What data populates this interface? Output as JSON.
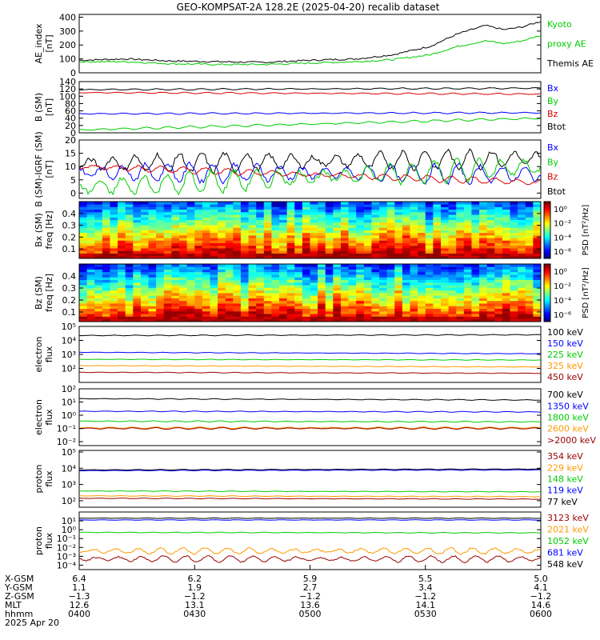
{
  "title": "GEO-KOMPSAT-2A 128.2E (2025-04-20) recalib dataset",
  "colors": {
    "black": "#000000",
    "blue": "#0000ff",
    "green": "#00cc00",
    "red": "#dd0000",
    "orange": "#ff9900",
    "darkred": "#990000"
  },
  "chart_data": [
    {
      "id": "ae",
      "type": "line",
      "ylabel": [
        "AE_index",
        "[nT]"
      ],
      "ylim": [
        0,
        420
      ],
      "log": false,
      "ticks": [
        "0",
        "100",
        "200",
        "300",
        "400"
      ],
      "tick_values": [
        0,
        100,
        200,
        300,
        400
      ],
      "legend": [
        {
          "label": "Kyoto",
          "color": "#00cc00"
        },
        {
          "label": "proxy AE",
          "color": "#00cc00"
        },
        {
          "label": "Themis AE",
          "color": "#000000"
        }
      ],
      "x": [
        0,
        0.1,
        0.2,
        0.3,
        0.4,
        0.5,
        0.6,
        0.68,
        0.76,
        0.82,
        0.88,
        0.92,
        0.96,
        1.0
      ],
      "series": [
        {
          "name": "Themis AE",
          "color": "#000000",
          "values": [
            90,
            100,
            85,
            80,
            75,
            90,
            100,
            130,
            190,
            280,
            340,
            310,
            330,
            370
          ]
        },
        {
          "name": "Kyoto proxy AE",
          "color": "#00cc00",
          "values": [
            80,
            80,
            65,
            60,
            60,
            70,
            80,
            95,
            130,
            190,
            230,
            210,
            230,
            270
          ]
        }
      ]
    },
    {
      "id": "bgsm",
      "type": "line",
      "ylabel": [
        "B (SM)",
        "[nT]"
      ],
      "ylim": [
        0,
        140
      ],
      "log": false,
      "ticks": [
        "0",
        "20",
        "40",
        "60",
        "80",
        "100",
        "120",
        "140"
      ],
      "tick_values": [
        0,
        20,
        40,
        60,
        80,
        100,
        120,
        140
      ],
      "legend": [
        {
          "label": "Bx",
          "color": "#0000ff"
        },
        {
          "label": "By",
          "color": "#00cc00"
        },
        {
          "label": "Bz",
          "color": "#dd0000"
        },
        {
          "label": "Btot",
          "color": "#000000"
        }
      ],
      "series": [
        {
          "name": "Btot",
          "color": "#000000",
          "start": 118,
          "end": 122,
          "osc": 2
        },
        {
          "name": "Bz",
          "color": "#dd0000",
          "start": 110,
          "end": 106,
          "osc": 2
        },
        {
          "name": "Bx",
          "color": "#0000ff",
          "start": 52,
          "end": 55,
          "osc": 2
        },
        {
          "name": "By",
          "color": "#00cc00",
          "start": 8,
          "end": 40,
          "osc": 3
        }
      ]
    },
    {
      "id": "bgrf",
      "type": "line",
      "ylabel": [
        "B (SM)-IGRF (SM)",
        "[nT]"
      ],
      "ylim": [
        -2,
        20
      ],
      "log": false,
      "ticks": [
        "0",
        "5",
        "10",
        "15",
        "20"
      ],
      "tick_values": [
        0,
        5,
        10,
        15,
        20
      ],
      "legend": [
        {
          "label": "Bx",
          "color": "#0000ff"
        },
        {
          "label": "By",
          "color": "#00cc00"
        },
        {
          "label": "Bz",
          "color": "#dd0000"
        },
        {
          "label": "Btot",
          "color": "#000000"
        }
      ],
      "series": [
        {
          "name": "Btot",
          "color": "#000000",
          "start": 11,
          "end": 13,
          "osc": 3.5
        },
        {
          "name": "Bx",
          "color": "#0000ff",
          "start": 8,
          "end": 7,
          "osc": 3.5
        },
        {
          "name": "Bz",
          "color": "#dd0000",
          "start": 10,
          "end": 4,
          "osc": 1.2
        },
        {
          "name": "By",
          "color": "#00cc00",
          "start": 2,
          "end": 10,
          "osc": 4
        }
      ]
    },
    {
      "id": "bxspec",
      "type": "heatmap",
      "ylabel": [
        "Bx (SM)",
        "freq [Hz]"
      ],
      "ylim": [
        0.02,
        0.5
      ],
      "ticks": [
        "0.1",
        "0.2",
        "0.3",
        "0.4"
      ],
      "tick_values": [
        0.1,
        0.2,
        0.3,
        0.4
      ],
      "colorbar_label": "PSD [nT²/Hz]",
      "colorbar_ticks": [
        "10⁰",
        "10⁻²",
        "10⁻⁴",
        "10⁻⁶"
      ],
      "colorbar_range": [
        -7,
        1
      ]
    },
    {
      "id": "bzspec",
      "type": "heatmap",
      "ylabel": [
        "Bz (SM)",
        "freq [Hz]"
      ],
      "ylim": [
        0.02,
        0.5
      ],
      "ticks": [
        "0.1",
        "0.2",
        "0.3",
        "0.4"
      ],
      "tick_values": [
        0.1,
        0.2,
        0.3,
        0.4
      ],
      "colorbar_label": "PSD [nT²/Hz]",
      "colorbar_ticks": [
        "10⁰",
        "10⁻²",
        "10⁻⁴",
        "10⁻⁶"
      ],
      "colorbar_range": [
        -7,
        1
      ]
    },
    {
      "id": "elec1",
      "type": "line",
      "log": true,
      "ylabel": [
        "electron",
        "flux"
      ],
      "ylim": [
        1,
        5
      ],
      "ticks": [
        "10²",
        "10³",
        "10⁴",
        "10⁵"
      ],
      "tick_values": [
        2,
        3,
        4,
        5
      ],
      "legend": [
        {
          "label": "100 keV",
          "color": "#000000"
        },
        {
          "label": "150 keV",
          "color": "#0000ff"
        },
        {
          "label": "225 keV",
          "color": "#00cc00"
        },
        {
          "label": "325 keV",
          "color": "#ff9900"
        },
        {
          "label": "450 keV",
          "color": "#990000"
        }
      ],
      "series": [
        {
          "name": "100 keV",
          "color": "#000000",
          "start": 4.35,
          "end": 4.4,
          "osc": 0.03
        },
        {
          "name": "150 keV",
          "color": "#0000ff",
          "start": 3.15,
          "end": 3.05,
          "osc": 0.02
        },
        {
          "name": "225 keV",
          "color": "#00cc00",
          "start": 2.65,
          "end": 2.6,
          "osc": 0.02
        },
        {
          "name": "325 keV",
          "color": "#ff9900",
          "start": 2.2,
          "end": 2.1,
          "osc": 0.02
        },
        {
          "name": "450 keV",
          "color": "#990000",
          "start": 1.72,
          "end": 1.65,
          "osc": 0.02
        }
      ]
    },
    {
      "id": "elec2",
      "type": "line",
      "log": true,
      "ylabel": [
        "electron",
        "flux"
      ],
      "ylim": [
        -2.3,
        2
      ],
      "ticks": [
        "10⁻²",
        "10⁻¹",
        "10⁰",
        "10¹",
        "10²"
      ],
      "tick_values": [
        -2,
        -1,
        0,
        1,
        2
      ],
      "legend": [
        {
          "label": "700 keV",
          "color": "#000000"
        },
        {
          "label": "1350 keV",
          "color": "#0000ff"
        },
        {
          "label": "1800 keV",
          "color": "#00cc00"
        },
        {
          "label": "2600 keV",
          "color": "#ff9900"
        },
        {
          "label": ">2000 keV",
          "color": "#990000"
        }
      ],
      "series": [
        {
          "name": "700 keV",
          "color": "#000000",
          "start": 1.25,
          "end": 1.15,
          "osc": 0.03
        },
        {
          "name": "1350 keV",
          "color": "#0000ff",
          "start": 0.3,
          "end": 0.25,
          "osc": 0.03
        },
        {
          "name": "1800 keV",
          "color": "#00cc00",
          "start": -0.45,
          "end": -0.5,
          "osc": 0.04
        },
        {
          "name": "2600 keV",
          "color": "#ff9900",
          "start": -0.95,
          "end": -0.95,
          "osc": 0.06
        },
        {
          "name": ">2000 keV",
          "color": "#990000",
          "start": -1.0,
          "end": -1.0,
          "osc": 0.06
        }
      ]
    },
    {
      "id": "prot1",
      "type": "line",
      "log": true,
      "ylabel": [
        "proton",
        "flux"
      ],
      "ylim": [
        1.6,
        5.1
      ],
      "ticks": [
        "10²",
        "10³",
        "10⁴",
        "10⁵"
      ],
      "tick_values": [
        2,
        3,
        4,
        5
      ],
      "legend": [
        {
          "label": "354 keV",
          "color": "#990000"
        },
        {
          "label": "229 keV",
          "color": "#ff9900"
        },
        {
          "label": "148 keV",
          "color": "#00cc00"
        },
        {
          "label": "119 keV",
          "color": "#0000ff"
        },
        {
          "label": "77 keV",
          "color": "#000000"
        }
      ],
      "series": [
        {
          "name": "77 keV",
          "color": "#000000",
          "start": 3.9,
          "end": 3.95,
          "osc": 0.02
        },
        {
          "name": "119 keV",
          "color": "#0000ff",
          "start": 3.85,
          "end": 3.9,
          "osc": 0.02
        },
        {
          "name": "148 keV",
          "color": "#00cc00",
          "start": 2.6,
          "end": 2.55,
          "osc": 0.02
        },
        {
          "name": "229 keV",
          "color": "#ff9900",
          "start": 2.3,
          "end": 2.25,
          "osc": 0.02
        },
        {
          "name": "354 keV",
          "color": "#990000",
          "start": 2.15,
          "end": 2.1,
          "osc": 0.02
        }
      ]
    },
    {
      "id": "prot2",
      "type": "line",
      "log": true,
      "ylabel": [
        "proton",
        "flux"
      ],
      "ylim": [
        -4.5,
        2
      ],
      "ticks": [
        "10⁻⁴",
        "10⁻³",
        "10⁻²",
        "10⁻¹",
        "10⁰",
        "10¹"
      ],
      "tick_values": [
        -4,
        -3,
        -2,
        -1,
        0,
        1
      ],
      "legend": [
        {
          "label": "3123 keV",
          "color": "#990000"
        },
        {
          "label": "2021 keV",
          "color": "#ff9900"
        },
        {
          "label": "1052 keV",
          "color": "#00cc00"
        },
        {
          "label": "681 keV",
          "color": "#0000ff"
        },
        {
          "label": "548 keV",
          "color": "#000000"
        }
      ],
      "series": [
        {
          "name": "548 keV",
          "color": "#000000",
          "start": 1.3,
          "end": 1.3,
          "osc": 0.03
        },
        {
          "name": "681 keV",
          "color": "#0000ff",
          "start": 1.1,
          "end": 1.1,
          "osc": 0.03
        },
        {
          "name": "1052 keV",
          "color": "#00cc00",
          "start": -0.3,
          "end": -0.35,
          "osc": 0.04
        },
        {
          "name": "2021 keV",
          "color": "#ff9900",
          "start": -2.4,
          "end": -2.4,
          "osc": 0.35
        },
        {
          "name": "3123 keV",
          "color": "#990000",
          "start": -3.3,
          "end": -3.3,
          "osc": 0.35
        }
      ]
    }
  ],
  "xaxis": {
    "labels": [
      "X-GSM",
      "Y-GSM",
      "Z-GSM",
      "MLT",
      "hhmm",
      "2025 Apr 20"
    ],
    "ticks": [
      {
        "t": 0.0,
        "rows": [
          "6.4",
          "1.1",
          "−1.3",
          "12.6",
          "0400"
        ]
      },
      {
        "t": 0.25,
        "rows": [
          "6.2",
          "1.9",
          "−1.2",
          "13.1",
          "0430"
        ]
      },
      {
        "t": 0.5,
        "rows": [
          "5.9",
          "2.7",
          "−1.2",
          "13.6",
          "0500"
        ]
      },
      {
        "t": 0.75,
        "rows": [
          "5.5",
          "3.4",
          "−1.2",
          "14.1",
          "0530"
        ]
      },
      {
        "t": 1.0,
        "rows": [
          "5.0",
          "4.1",
          "−1.2",
          "14.6",
          "0600"
        ]
      }
    ]
  }
}
